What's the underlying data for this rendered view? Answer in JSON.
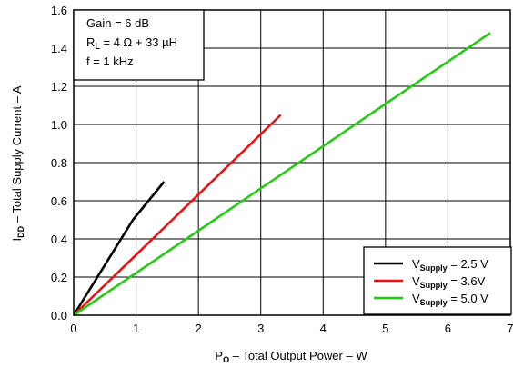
{
  "chart_data": {
    "type": "line",
    "xlabel": {
      "prefix": "P",
      "sub": "O",
      "rest": " – Total Output Power – W"
    },
    "ylabel": {
      "prefix": "I",
      "sub": "DD",
      "rest": " – Total Supply Current – A"
    },
    "xlim": [
      0,
      7
    ],
    "ylim": [
      0,
      1.6
    ],
    "x_ticks": [
      0,
      1,
      2,
      3,
      4,
      5,
      6,
      7
    ],
    "y_ticks": [
      0.0,
      0.2,
      0.4,
      0.6,
      0.8,
      1.0,
      1.2,
      1.4,
      1.6
    ],
    "grid": true,
    "legend_position": "bottom-right",
    "annotation": {
      "line1": "Gain = 6 dB",
      "line2_prefix": "R",
      "line2_sub": "L",
      "line2_rest": " = 4 Ω + 33 µH",
      "line3": "f = 1 kHz"
    },
    "series": [
      {
        "legend_prefix": "V",
        "legend_sub": "Supply",
        "legend_rest": " = 2.5 V",
        "color": "#000000",
        "x": [
          0,
          0.95,
          1.45
        ],
        "y": [
          0,
          0.5,
          0.7
        ]
      },
      {
        "legend_prefix": "V",
        "legend_sub": "Supply",
        "legend_rest": " = 3.6V",
        "color": "#ee1111",
        "x": [
          0,
          3.32
        ],
        "y": [
          0,
          1.05
        ]
      },
      {
        "legend_prefix": "V",
        "legend_sub": "Supply",
        "legend_rest": " = 5.0 V",
        "color": "#22cc11",
        "x": [
          0,
          6.68
        ],
        "y": [
          0,
          1.48
        ]
      }
    ]
  }
}
